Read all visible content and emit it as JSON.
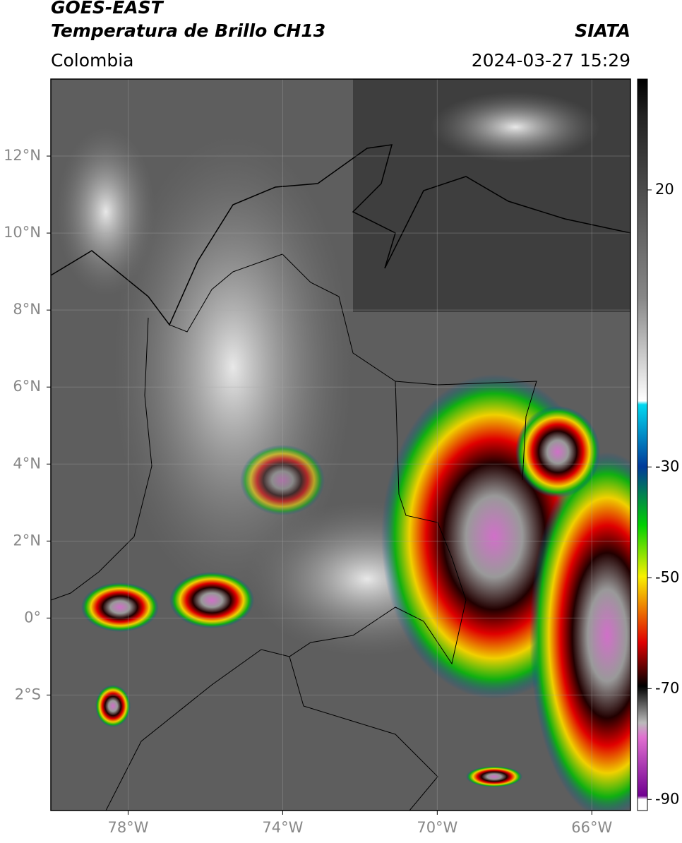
{
  "header": {
    "title": "GOES-EAST",
    "subtitle": "Temperatura de Brillo CH13",
    "region": "Colombia",
    "source": "SIATA",
    "datetime": "2024-03-27 15:29"
  },
  "map": {
    "lon_range": [
      -80,
      -65
    ],
    "lat_range": [
      -5,
      14
    ],
    "lon_ticks": [
      {
        "value": -78,
        "label": "78°W"
      },
      {
        "value": -74,
        "label": "74°W"
      },
      {
        "value": -70,
        "label": "70°W"
      },
      {
        "value": -66,
        "label": "66°W"
      }
    ],
    "lat_ticks": [
      {
        "value": 12,
        "label": "12°N"
      },
      {
        "value": 10,
        "label": "10°N"
      },
      {
        "value": 8,
        "label": "8°N"
      },
      {
        "value": 6,
        "label": "6°N"
      },
      {
        "value": 4,
        "label": "4°N"
      },
      {
        "value": 2,
        "label": "2°N"
      },
      {
        "value": 0,
        "label": "0°"
      },
      {
        "value": -2,
        "label": "2°S"
      }
    ]
  },
  "colorbar": {
    "range": [
      -92,
      40
    ],
    "ticks": [
      20,
      -30,
      -50,
      -70,
      -90
    ]
  }
}
